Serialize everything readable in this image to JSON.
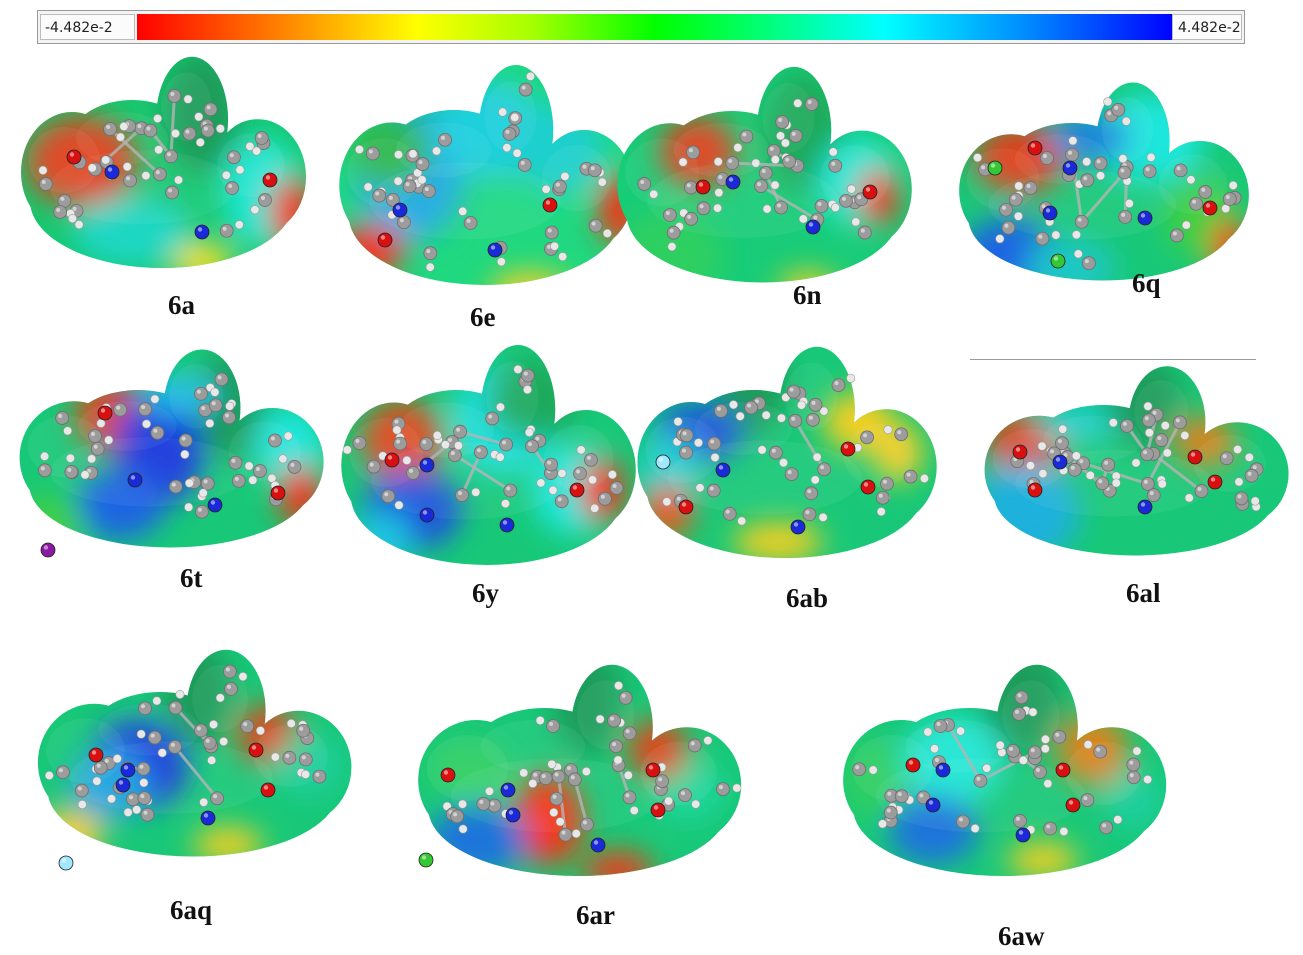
{
  "color_scale": {
    "min_label": "-4.482e-2",
    "max_label": "4.482e-2",
    "colors": [
      "#ff0000",
      "#ff7a00",
      "#ffff00",
      "#a6ff00",
      "#00ff00",
      "#00ff88",
      "#00ffff",
      "#0088ff",
      "#0000ff"
    ]
  },
  "molecules": [
    {
      "label": "6a"
    },
    {
      "label": "6e"
    },
    {
      "label": "6n"
    },
    {
      "label": "6q"
    },
    {
      "label": "6t"
    },
    {
      "label": "6y"
    },
    {
      "label": "6ab"
    },
    {
      "label": "6al"
    },
    {
      "label": "6aq"
    },
    {
      "label": "6ar"
    },
    {
      "label": "6aw"
    }
  ],
  "atom_colors": {
    "carbon": "#9c9c9c",
    "hydrogen": "#e8e8e8",
    "nitrogen": "#1a2ad8",
    "oxygen": "#d81010",
    "chlorine": "#34c834",
    "iodine": "#8a1aa0",
    "fluorine": "#9fe8ff"
  }
}
